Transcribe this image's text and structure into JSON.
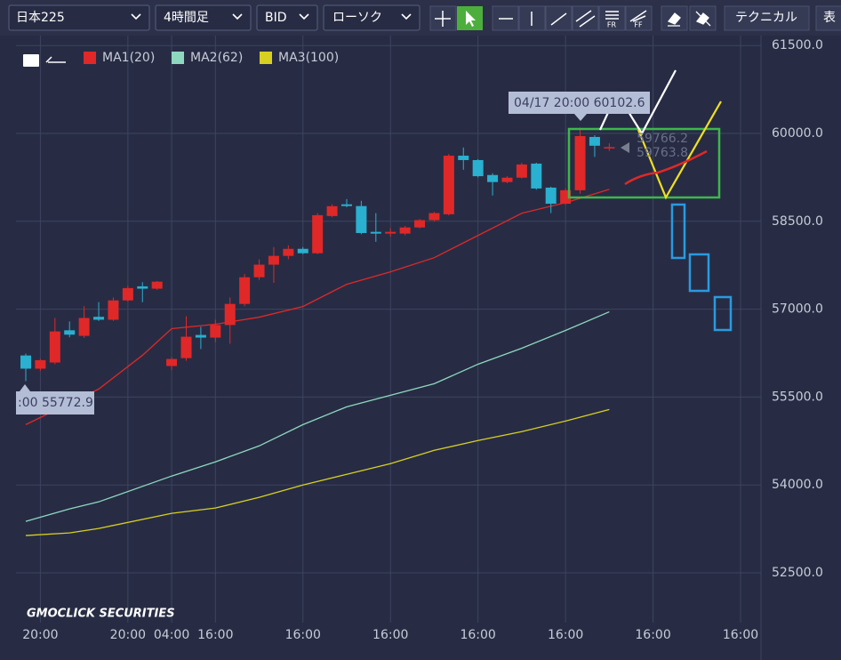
{
  "toolbar": {
    "symbol": "日本225",
    "interval": "4時間足",
    "price_type": "BID",
    "chart_style": "ローソク",
    "fr": "FR",
    "ff": "FF",
    "technical": "テクニカル",
    "table": "表"
  },
  "logo": "GMOCLICK SECURITIES",
  "chart_data": {
    "type": "candlestick",
    "x": [
      0,
      1,
      2,
      3,
      4,
      5,
      6,
      7,
      8,
      9,
      10,
      11,
      12,
      13,
      14,
      15,
      16,
      17,
      18,
      19,
      20,
      21,
      22,
      23,
      24,
      25,
      26,
      27,
      28,
      29,
      30,
      31,
      32,
      33,
      34,
      35,
      36,
      37,
      38,
      39,
      40
    ],
    "open": [
      56210,
      55985,
      56090,
      56640,
      56545,
      56870,
      56820,
      57150,
      57390,
      57350,
      56030,
      56165,
      56560,
      56515,
      56730,
      57090,
      57545,
      57760,
      57910,
      58030,
      57955,
      58590,
      58790,
      58760,
      58320,
      58290,
      58290,
      58395,
      58520,
      58620,
      59620,
      59545,
      59290,
      59170,
      59245,
      59485,
      59075,
      58800,
      59030,
      59940,
      59755
    ],
    "high": [
      56240,
      56150,
      56850,
      56790,
      57050,
      57120,
      57200,
      57400,
      57460,
      57480,
      56180,
      56880,
      56700,
      56820,
      57200,
      57600,
      57850,
      58060,
      58090,
      58060,
      58640,
      58790,
      58880,
      58850,
      58640,
      58380,
      58420,
      58540,
      58660,
      59650,
      59760,
      59560,
      59320,
      59270,
      59500,
      59500,
      59090,
      59060,
      60102.6,
      59970,
      59830
    ],
    "low": [
      55772.9,
      55950,
      56060,
      56520,
      56510,
      56800,
      56800,
      57130,
      57120,
      57330,
      55960,
      56120,
      56320,
      56440,
      56410,
      57050,
      57500,
      57450,
      57850,
      57940,
      57940,
      58570,
      58740,
      58280,
      58150,
      58240,
      58260,
      58380,
      58500,
      58600,
      59380,
      59250,
      58940,
      59150,
      59230,
      59040,
      58640,
      58780,
      58970,
      59600,
      59700
    ],
    "close": [
      55985,
      56130,
      56620,
      56565,
      56850,
      56820,
      57150,
      57360,
      57350,
      57470,
      56150,
      56530,
      56515,
      56730,
      57090,
      57545,
      57760,
      57910,
      58030,
      57955,
      58605,
      58758,
      58760,
      58300,
      58290,
      58320,
      58395,
      58520,
      58640,
      59620,
      59545,
      59270,
      59170,
      59245,
      59470,
      59060,
      58800,
      59030,
      59955,
      59790,
      59766.2
    ],
    "up_color": "#e02828",
    "down_color": "#2ab0d0",
    "series": [
      {
        "name": "MA1(20)",
        "color": "#e02828",
        "x": [
          0,
          5,
          8,
          10,
          13,
          16,
          19,
          22,
          25,
          28,
          31,
          34,
          37,
          40
        ],
        "values": [
          55030,
          55637,
          56213,
          56667,
          56743,
          56864,
          57046,
          57425,
          57637,
          57879,
          58258,
          58637,
          58818,
          59046
        ]
      },
      {
        "name": "MA2(62)",
        "color": "#8fd8c0",
        "x": [
          0,
          3,
          5,
          10,
          13,
          16,
          19,
          22,
          25,
          28,
          31,
          34,
          37,
          40
        ],
        "values": [
          53379,
          53591,
          53712,
          54152,
          54394,
          54667,
          55030,
          55334,
          55531,
          55728,
          56061,
          56334,
          56637,
          56955
        ]
      },
      {
        "name": "MA3(100)",
        "color": "#d8d020",
        "x": [
          0,
          3,
          5,
          10,
          13,
          16,
          19,
          22,
          25,
          28,
          31,
          34,
          37,
          40
        ],
        "values": [
          53137,
          53182,
          53258,
          53515,
          53606,
          53788,
          54000,
          54182,
          54364,
          54591,
          54758,
          54910,
          55091,
          55288
        ]
      }
    ],
    "tooltip": "04/17 20:00 60102.6",
    "low_label": ":00 55772.9",
    "last_labels": [
      "59766.2",
      "59763.8"
    ],
    "xlim": [
      -0.67,
      50.4
    ],
    "xticks": [
      {
        "value": 1,
        "label": "20:00"
      },
      {
        "value": 7,
        "label": "20:00"
      },
      {
        "value": 10,
        "label": "04:00"
      },
      {
        "value": 13,
        "label": "16:00"
      },
      {
        "value": 19,
        "label": "16:00"
      },
      {
        "value": 25,
        "label": "16:00"
      },
      {
        "value": 31,
        "label": "16:00"
      },
      {
        "value": 37,
        "label": "16:00"
      },
      {
        "value": 43,
        "label": "16:00"
      },
      {
        "value": 49,
        "label": "16:00"
      }
    ],
    "ylim": [
      51650,
      61670
    ],
    "yticks": [
      {
        "value": 52500,
        "label": "52500.0"
      },
      {
        "value": 54000,
        "label": "54000.0"
      },
      {
        "value": 55500,
        "label": "55500.0"
      },
      {
        "value": 57000,
        "label": "57000.0"
      },
      {
        "value": 58500,
        "label": "58500.0"
      },
      {
        "value": 60000,
        "label": "60000.0"
      },
      {
        "value": 61500,
        "label": "61500.0"
      }
    ],
    "grid": true
  }
}
